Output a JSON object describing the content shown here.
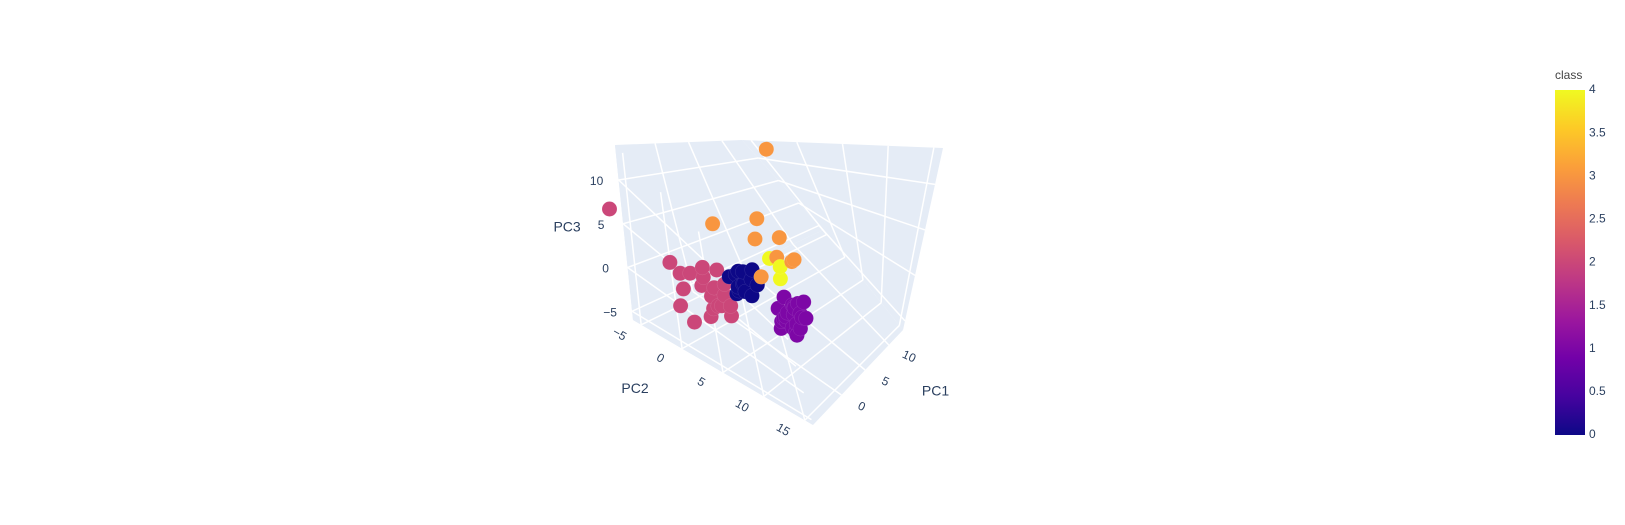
{
  "chart_data": {
    "type": "scatter",
    "subtype": "scatter3d",
    "title": "",
    "axes": {
      "x": {
        "label": "PC1",
        "ticks": [
          0,
          5,
          10
        ],
        "range": [
          -6,
          13
        ]
      },
      "y": {
        "label": "PC2",
        "ticks": [
          -5,
          0,
          5,
          10,
          15
        ],
        "range": [
          -6,
          16
        ]
      },
      "z": {
        "label": "PC3",
        "ticks": [
          -5,
          0,
          5,
          10
        ],
        "range": [
          -6,
          14
        ]
      }
    },
    "grid": true,
    "colorbar": {
      "title": "class",
      "range": [
        0,
        4
      ],
      "ticks": [
        "0",
        "0.5",
        "1",
        "1.5",
        "2",
        "2.5",
        "3",
        "3.5",
        "4"
      ],
      "colorscale": [
        "#0d0887",
        "#46039f",
        "#7201a8",
        "#9c179e",
        "#bd3786",
        "#d8576b",
        "#ed7953",
        "#fb9f3a",
        "#fdca26",
        "#f0f921"
      ]
    },
    "points": [
      {
        "x": -1.2,
        "y": 3.5,
        "z": 1.8,
        "class": 0
      },
      {
        "x": -0.8,
        "y": 4.0,
        "z": 2.4,
        "class": 0
      },
      {
        "x": -0.2,
        "y": 3.0,
        "z": 1.2,
        "class": 0
      },
      {
        "x": -1.5,
        "y": 2.8,
        "z": 2.9,
        "class": 0
      },
      {
        "x": -0.5,
        "y": 4.5,
        "z": 0.8,
        "class": 0
      },
      {
        "x": 0.3,
        "y": 3.8,
        "z": 2.1,
        "class": 0
      },
      {
        "x": -1.0,
        "y": 3.2,
        "z": 3.2,
        "class": 0
      },
      {
        "x": -0.1,
        "y": 2.5,
        "z": 2.6,
        "class": 0
      },
      {
        "x": -1.8,
        "y": 3.9,
        "z": 1.5,
        "class": 0
      },
      {
        "x": 0.6,
        "y": 4.2,
        "z": 1.4,
        "class": 0
      },
      {
        "x": -0.7,
        "y": 2.9,
        "z": 0.5,
        "class": 0
      },
      {
        "x": -1.3,
        "y": 4.6,
        "z": 2.0,
        "class": 0
      },
      {
        "x": 0.9,
        "y": 3.4,
        "z": 2.8,
        "class": 0
      },
      {
        "x": -0.4,
        "y": 3.6,
        "z": 3.5,
        "class": 0
      },
      {
        "x": 2.0,
        "y": 6.5,
        "z": -2.0,
        "class": 1
      },
      {
        "x": 2.6,
        "y": 7.0,
        "z": -1.2,
        "class": 1
      },
      {
        "x": 1.5,
        "y": 6.8,
        "z": -2.6,
        "class": 1
      },
      {
        "x": 3.0,
        "y": 6.2,
        "z": -1.8,
        "class": 1
      },
      {
        "x": 2.2,
        "y": 7.5,
        "z": -0.8,
        "class": 1
      },
      {
        "x": 1.8,
        "y": 6.0,
        "z": -3.0,
        "class": 1
      },
      {
        "x": 2.8,
        "y": 7.8,
        "z": -2.4,
        "class": 1
      },
      {
        "x": 1.2,
        "y": 7.2,
        "z": -1.5,
        "class": 1
      },
      {
        "x": 3.4,
        "y": 6.8,
        "z": -2.9,
        "class": 1
      },
      {
        "x": 2.4,
        "y": 5.8,
        "z": -0.5,
        "class": 1
      },
      {
        "x": 1.0,
        "y": 6.4,
        "z": -3.6,
        "class": 1
      },
      {
        "x": 3.6,
        "y": 7.4,
        "z": -1.0,
        "class": 1
      },
      {
        "x": 2.1,
        "y": 8.2,
        "z": -3.2,
        "class": 1
      },
      {
        "x": 1.6,
        "y": 5.6,
        "z": -1.7,
        "class": 1
      },
      {
        "x": 3.2,
        "y": 5.9,
        "z": -3.5,
        "class": 1
      },
      {
        "x": 2.7,
        "y": 8.6,
        "z": -1.9,
        "class": 1
      },
      {
        "x": 1.3,
        "y": 7.9,
        "z": -2.7,
        "class": 1
      },
      {
        "x": 2.9,
        "y": 6.6,
        "z": -4.2,
        "class": 1
      },
      {
        "x": 2.3,
        "y": 7.1,
        "z": -4.6,
        "class": 1
      },
      {
        "x": 1.7,
        "y": 8.0,
        "z": -4.0,
        "class": 1
      },
      {
        "x": 3.8,
        "y": 6.1,
        "z": -2.2,
        "class": 1
      },
      {
        "x": 0.8,
        "y": 6.9,
        "z": -2.1,
        "class": 1
      },
      {
        "x": -2.5,
        "y": 1.5,
        "z": 1.0,
        "class": 2
      },
      {
        "x": -3.0,
        "y": 0.8,
        "z": 2.2,
        "class": 2
      },
      {
        "x": -2.0,
        "y": 2.2,
        "z": 0.2,
        "class": 2
      },
      {
        "x": -3.5,
        "y": 1.0,
        "z": 1.5,
        "class": 2
      },
      {
        "x": -2.8,
        "y": 2.6,
        "z": -0.5,
        "class": 2
      },
      {
        "x": -1.6,
        "y": 1.2,
        "z": 2.7,
        "class": 2
      },
      {
        "x": -4.0,
        "y": 0.2,
        "z": 2.8,
        "class": 2
      },
      {
        "x": -3.2,
        "y": 1.8,
        "z": -1.2,
        "class": 2
      },
      {
        "x": -2.2,
        "y": 3.0,
        "z": -2.0,
        "class": 2
      },
      {
        "x": -4.5,
        "y": -0.5,
        "z": 0.5,
        "class": 2
      },
      {
        "x": -3.8,
        "y": 2.0,
        "z": -1.8,
        "class": 2
      },
      {
        "x": -2.6,
        "y": 0.4,
        "z": 3.0,
        "class": 2
      },
      {
        "x": -5.0,
        "y": 1.0,
        "z": -2.5,
        "class": 2
      },
      {
        "x": -4.2,
        "y": -1.0,
        "z": 2.0,
        "class": 2
      },
      {
        "x": -1.9,
        "y": 2.4,
        "z": 1.8,
        "class": 2
      },
      {
        "x": -3.4,
        "y": 2.8,
        "z": 0.0,
        "class": 2
      },
      {
        "x": -5.5,
        "y": 0.0,
        "z": -0.8,
        "class": 2
      },
      {
        "x": -2.4,
        "y": 3.4,
        "z": -0.2,
        "class": 2
      },
      {
        "x": -4.8,
        "y": -1.5,
        "z": 3.3,
        "class": 2
      },
      {
        "x": -3.6,
        "y": 2.3,
        "z": 1.1,
        "class": 2
      },
      {
        "x": -7.5,
        "y": -6.0,
        "z": 7.0,
        "class": 2
      },
      {
        "x": 3.0,
        "y": 2.0,
        "z": 5.0,
        "class": 3
      },
      {
        "x": 4.5,
        "y": 1.0,
        "z": 6.5,
        "class": 3
      },
      {
        "x": 5.5,
        "y": 2.5,
        "z": 4.0,
        "class": 3
      },
      {
        "x": 3.8,
        "y": 3.8,
        "z": 3.0,
        "class": 3
      },
      {
        "x": 5.0,
        "y": 4.5,
        "z": 2.0,
        "class": 3
      },
      {
        "x": 6.0,
        "y": 3.5,
        "z": 1.0,
        "class": 3
      },
      {
        "x": -0.5,
        "y": 0.5,
        "z": 8.0,
        "class": 3
      },
      {
        "x": 1.0,
        "y": 4.5,
        "z": 2.5,
        "class": 3
      },
      {
        "x": 12.5,
        "y": -3.5,
        "z": 12.5,
        "class": 3
      },
      {
        "x": 3.5,
        "y": 3.0,
        "z": 2.5,
        "class": 4
      },
      {
        "x": 4.0,
        "y": 3.8,
        "z": 1.5,
        "class": 4
      },
      {
        "x": 3.2,
        "y": 4.6,
        "z": 0.8,
        "class": 4
      }
    ]
  }
}
